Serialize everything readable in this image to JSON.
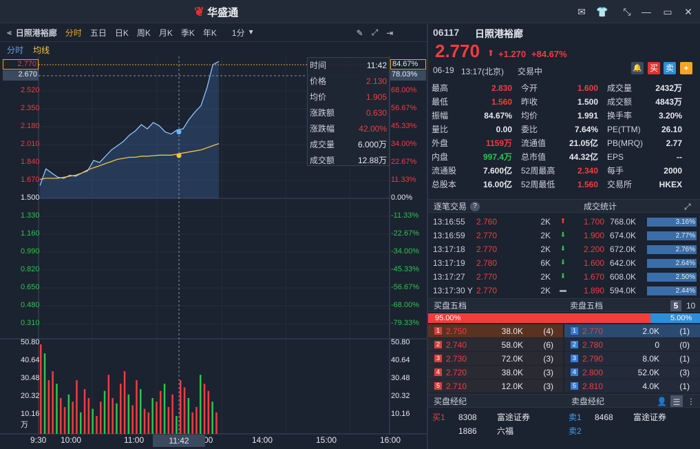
{
  "app": {
    "brand": "华盛通",
    "logo_glyph": "❦"
  },
  "chart_toolbar": {
    "stock_name": "日照港裕廊",
    "tabs": [
      "分时",
      "五日",
      "日K",
      "周K",
      "月K",
      "季K",
      "年K",
      "1分"
    ],
    "active_tab": 0,
    "sub_tabs": [
      "分时",
      "均线"
    ]
  },
  "crosshair": {
    "price_left": "2.770",
    "pct_right": "84.67%",
    "price_left2": "2.670",
    "pct_right2": "78.03%",
    "time_label": "11:42"
  },
  "tooltip": [
    {
      "label": "时间",
      "value": "11:42",
      "color": "#e6e9ee"
    },
    {
      "label": "价格",
      "value": "2.130",
      "color": "#f23d3d"
    },
    {
      "label": "均价",
      "value": "1.905",
      "color": "#f23d3d"
    },
    {
      "label": "涨跌额",
      "value": "0.630",
      "color": "#f23d3d"
    },
    {
      "label": "涨跌幅",
      "value": "42.00%",
      "color": "#f23d3d"
    },
    {
      "label": "成交量",
      "value": "6.000万",
      "color": "#e6e9ee"
    },
    {
      "label": "成交额",
      "value": "12.88万",
      "color": "#e6e9ee"
    }
  ],
  "price_axis": {
    "left": [
      "2.520",
      "2.350",
      "2.180",
      "2.010",
      "1.840",
      "1.670",
      "1.500",
      "1.330",
      "1.160",
      "0.990",
      "0.820",
      "0.650",
      "0.480",
      "0.310"
    ],
    "right": [
      "68.00%",
      "56.67%",
      "45.33%",
      "34.00%",
      "22.67%",
      "11.33%",
      "0.00%",
      "-11.33%",
      "-22.67%",
      "-34.00%",
      "-45.33%",
      "-56.67%",
      "-68.00%",
      "-79.33%"
    ]
  },
  "volume_axis": {
    "labels": [
      "50.80",
      "40.64",
      "30.48",
      "20.32",
      "10.16",
      "万"
    ]
  },
  "time_axis": [
    "9:30",
    "10:00",
    "11:00",
    "00",
    "14:00",
    "15:00",
    "16:00"
  ],
  "chart_data": {
    "type": "line",
    "series": [
      {
        "values": [
          1.62,
          1.78,
          1.74,
          1.7,
          1.69,
          1.72,
          1.71,
          1.74,
          1.76,
          1.86,
          1.84,
          1.9,
          1.96,
          2.0,
          2.04,
          2.1,
          2.14,
          2.2,
          2.16,
          2.22,
          2.19,
          2.13,
          2.11,
          2.15,
          2.16,
          2.25,
          2.32,
          2.38,
          2.55,
          2.77,
          2.8
        ]
      },
      {
        "values": [
          1.68,
          1.69,
          1.69,
          1.69,
          1.7,
          1.71,
          1.72,
          1.74,
          1.77,
          1.79,
          1.81,
          1.83,
          1.85,
          1.87,
          1.88,
          1.89,
          1.89,
          1.9,
          1.9,
          1.905,
          1.91,
          1.91,
          1.91,
          1.92,
          1.93,
          1.94,
          1.95,
          1.96,
          1.98,
          2.0,
          2.02
        ]
      }
    ],
    "ylim": [
      0.31,
      2.83
    ],
    "volume": [
      50,
      45,
      30,
      35,
      28,
      20,
      15,
      22,
      18,
      30,
      12,
      25,
      20,
      14,
      10,
      18,
      24,
      33,
      20,
      17,
      28,
      35,
      22,
      16,
      30,
      25,
      14,
      12,
      20,
      18,
      24,
      28,
      15,
      22,
      10,
      30,
      26,
      20,
      12,
      15,
      33,
      28,
      24,
      18,
      12
    ]
  },
  "quote": {
    "code": "06117",
    "name": "日照港裕廊",
    "price": "2.770",
    "change": "+1.270",
    "change_pct": "+84.67%",
    "date": "06-19",
    "time": "13:17(北京)",
    "status": "交易中",
    "btn_buy": "买",
    "btn_sell": "卖",
    "btn_add": "+",
    "grid": [
      [
        [
          "最高",
          "2.830",
          "red"
        ],
        [
          "今开",
          "1.600",
          "red"
        ],
        [
          "成交量",
          "2432万",
          "white"
        ]
      ],
      [
        [
          "最低",
          "1.560",
          "red"
        ],
        [
          "昨收",
          "1.500",
          "white"
        ],
        [
          "成交额",
          "4843万",
          "white"
        ]
      ],
      [
        [
          "振幅",
          "84.67%",
          "white"
        ],
        [
          "均价",
          "1.991",
          "white"
        ],
        [
          "换手率",
          "3.20%",
          "white"
        ]
      ],
      [
        [
          "量比",
          "0.00",
          "white"
        ],
        [
          "委比",
          "7.64%",
          "white"
        ],
        [
          "PE(TTM)",
          "26.10",
          "white"
        ]
      ],
      [
        [
          "外盘",
          "1159万",
          "red"
        ],
        [
          "流通值",
          "21.05亿",
          "white"
        ],
        [
          "PB(MRQ)",
          "2.77",
          "white"
        ]
      ],
      [
        [
          "内盘",
          "997.4万",
          "green"
        ],
        [
          "总市值",
          "44.32亿",
          "white"
        ],
        [
          "EPS",
          "--",
          "white"
        ]
      ],
      [
        [
          "流通股",
          "7.600亿",
          "white"
        ],
        [
          "52周最高",
          "2.340",
          "red"
        ],
        [
          "每手",
          "2000",
          "white"
        ]
      ],
      [
        [
          "总股本",
          "16.00亿",
          "white"
        ],
        [
          "52周最低",
          "1.560",
          "red"
        ],
        [
          "交易所",
          "HKEX",
          "white"
        ]
      ]
    ]
  },
  "trades_header": {
    "left": "逐笔交易",
    "right": "成交统计"
  },
  "trades": [
    {
      "time": "13:16:55",
      "price": "2.760",
      "vol": "2K",
      "dir": "up"
    },
    {
      "time": "13:16:59",
      "price": "2.770",
      "vol": "2K",
      "dir": "down"
    },
    {
      "time": "13:17:18",
      "price": "2.770",
      "vol": "2K",
      "dir": "down"
    },
    {
      "time": "13:17:19",
      "price": "2.780",
      "vol": "6K",
      "dir": "down"
    },
    {
      "time": "13:17:27",
      "price": "2.770",
      "vol": "2K",
      "dir": "down"
    },
    {
      "time": "13:17:30 Y",
      "price": "2.770",
      "vol": "2K",
      "dir": "flat"
    }
  ],
  "stats": [
    {
      "price": "1.700",
      "vol": "768.0K",
      "pct": "3.16%",
      "color": "red"
    },
    {
      "price": "1.900",
      "vol": "674.0K",
      "pct": "2.77%",
      "color": "red"
    },
    {
      "price": "2.200",
      "vol": "672.0K",
      "pct": "2.76%",
      "color": "red"
    },
    {
      "price": "1.600",
      "vol": "642.0K",
      "pct": "2.64%",
      "color": "red"
    },
    {
      "price": "1.670",
      "vol": "608.0K",
      "pct": "2.50%",
      "color": "red"
    },
    {
      "price": "1.890",
      "vol": "594.0K",
      "pct": "2.44%",
      "color": "red"
    }
  ],
  "depth_header": {
    "bid": "买盘五档",
    "ask": "卖盘五档",
    "n5": "5",
    "n10": "10"
  },
  "ratio": {
    "bid": "95.00%",
    "ask": "5.00%"
  },
  "bids": [
    {
      "n": "1",
      "price": "2.750",
      "vol": "38.0K",
      "cnt": "(4)"
    },
    {
      "n": "2",
      "price": "2.740",
      "vol": "58.0K",
      "cnt": "(6)"
    },
    {
      "n": "3",
      "price": "2.730",
      "vol": "72.0K",
      "cnt": "(3)"
    },
    {
      "n": "4",
      "price": "2.720",
      "vol": "38.0K",
      "cnt": "(3)"
    },
    {
      "n": "5",
      "price": "2.710",
      "vol": "12.0K",
      "cnt": "(3)"
    }
  ],
  "asks": [
    {
      "n": "1",
      "price": "2.770",
      "vol": "2.0K",
      "cnt": "(1)"
    },
    {
      "n": "2",
      "price": "2.780",
      "vol": "0",
      "cnt": "(0)"
    },
    {
      "n": "3",
      "price": "2.790",
      "vol": "8.0K",
      "cnt": "(1)"
    },
    {
      "n": "4",
      "price": "2.800",
      "vol": "52.0K",
      "cnt": "(3)"
    },
    {
      "n": "5",
      "price": "2.810",
      "vol": "4.0K",
      "cnt": "(1)"
    }
  ],
  "brokers_header": {
    "bid": "买盘经纪",
    "ask": "卖盘经纪"
  },
  "brokers_bid": [
    [
      "买1",
      "8308",
      "富途证券"
    ],
    [
      "",
      "1886",
      "六福"
    ]
  ],
  "brokers_ask": [
    [
      "卖1",
      "8468",
      "富途证券"
    ],
    [
      "卖2",
      "",
      ""
    ]
  ]
}
